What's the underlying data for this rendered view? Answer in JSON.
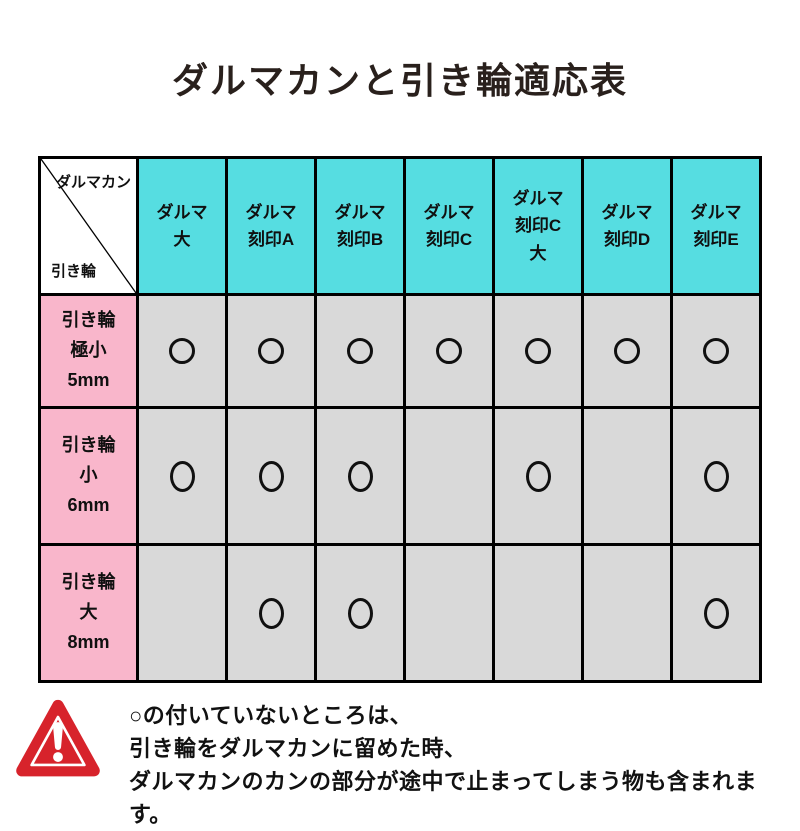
{
  "title": "ダルマカンと引き輪適応表",
  "colors": {
    "header_bg": "#56dde1",
    "row_label_bg": "#f9b6cb",
    "cell_bg": "#d9d9d9",
    "border": "#000000",
    "warning_red": "#d7232b",
    "title_color": "#29201c"
  },
  "table": {
    "corner": {
      "top_label": "ダルマカン",
      "bottom_label": "引き輪"
    },
    "columns": [
      "ダルマ\n大",
      "ダルマ\n刻印A",
      "ダルマ\n刻印B",
      "ダルマ\n刻印C",
      "ダルマ\n刻印C\n大",
      "ダルマ\n刻印D",
      "ダルマ\n刻印E"
    ],
    "row_labels": [
      "引き輪\n極小\n5mm",
      "引き輪\n小\n6mm",
      "引き輪\n大\n8mm"
    ],
    "mark_symbol": "○"
  },
  "chart_data": {
    "type": "table",
    "title": "ダルマカンと引き輪適応表",
    "columns": [
      "ダルマ大",
      "ダルマ刻印A",
      "ダルマ刻印B",
      "ダルマ刻印C",
      "ダルマ刻印C大",
      "ダルマ刻印D",
      "ダルマ刻印E"
    ],
    "rows": [
      "引き輪 極小 5mm",
      "引き輪 小 6mm",
      "引き輪 大 8mm"
    ],
    "values": [
      [
        "○",
        "○",
        "○",
        "○",
        "○",
        "○",
        "○"
      ],
      [
        "○",
        "○",
        "○",
        "",
        "○",
        "",
        "○"
      ],
      [
        "",
        "○",
        "○",
        "",
        "",
        "",
        "○"
      ]
    ]
  },
  "note": {
    "lines": [
      "○の付いていないところは、",
      "引き輪をダルマカンに留めた時、",
      "ダルマカンのカンの部分が途中で止まってしまう物も含まれます。"
    ]
  }
}
